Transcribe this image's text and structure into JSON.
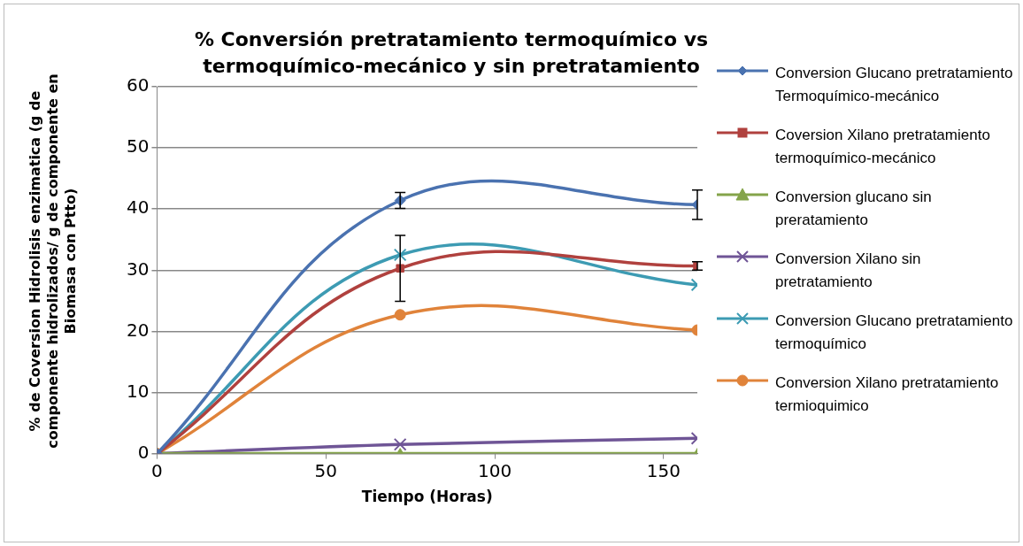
{
  "chart_data": {
    "type": "line",
    "title": "% Conversión pretratamiento termoquímico vs termoquímico-mecánico  y sin pretratamiento",
    "xlabel": "Tiempo (Horas)",
    "ylabel": "% de Coversion Hidrolisis enzimatica (g de componente hidrolizados/ g de componente en Biomasa con Ptto)",
    "x": [
      0,
      72,
      160
    ],
    "xlim": [
      0,
      160
    ],
    "xticks": [
      0,
      50,
      100,
      150
    ],
    "ylim": [
      0,
      60
    ],
    "yticks": [
      0,
      10,
      20,
      30,
      40,
      50,
      60
    ],
    "grid": "y",
    "legend": "right",
    "line_style": "solid",
    "series": [
      {
        "name": "Conversion Glucano pretratamiento Termoquímico-mecánico",
        "color": "#4a72b0",
        "marker": "diamond",
        "values": [
          0,
          41.4,
          40.7
        ],
        "errors": [
          null,
          1.3,
          2.4
        ]
      },
      {
        "name": "Coversion Xilano pretratamiento termoquímico-mecánico",
        "color": "#b0413e",
        "marker": "square",
        "values": [
          0,
          30.3,
          30.7
        ],
        "errors": [
          null,
          5.4,
          0.7
        ]
      },
      {
        "name": "Conversion glucano sin preratamiento",
        "color": "#84a44a",
        "marker": "triangle",
        "values": [
          0,
          0,
          0
        ]
      },
      {
        "name": "Conversion Xilano sin pretratamiento",
        "color": "#6f5596",
        "marker": "cross",
        "values": [
          0,
          1.5,
          2.5
        ]
      },
      {
        "name": "Conversion Glucano pretratamiento termoquímico",
        "color": "#3d9bb3",
        "marker": "cross",
        "values": [
          0,
          32.5,
          27.6
        ]
      },
      {
        "name": "Conversion Xilano pretratamiento termioquimico",
        "color": "#e0833a",
        "marker": "circle",
        "values": [
          0,
          22.7,
          20.2
        ]
      }
    ]
  }
}
